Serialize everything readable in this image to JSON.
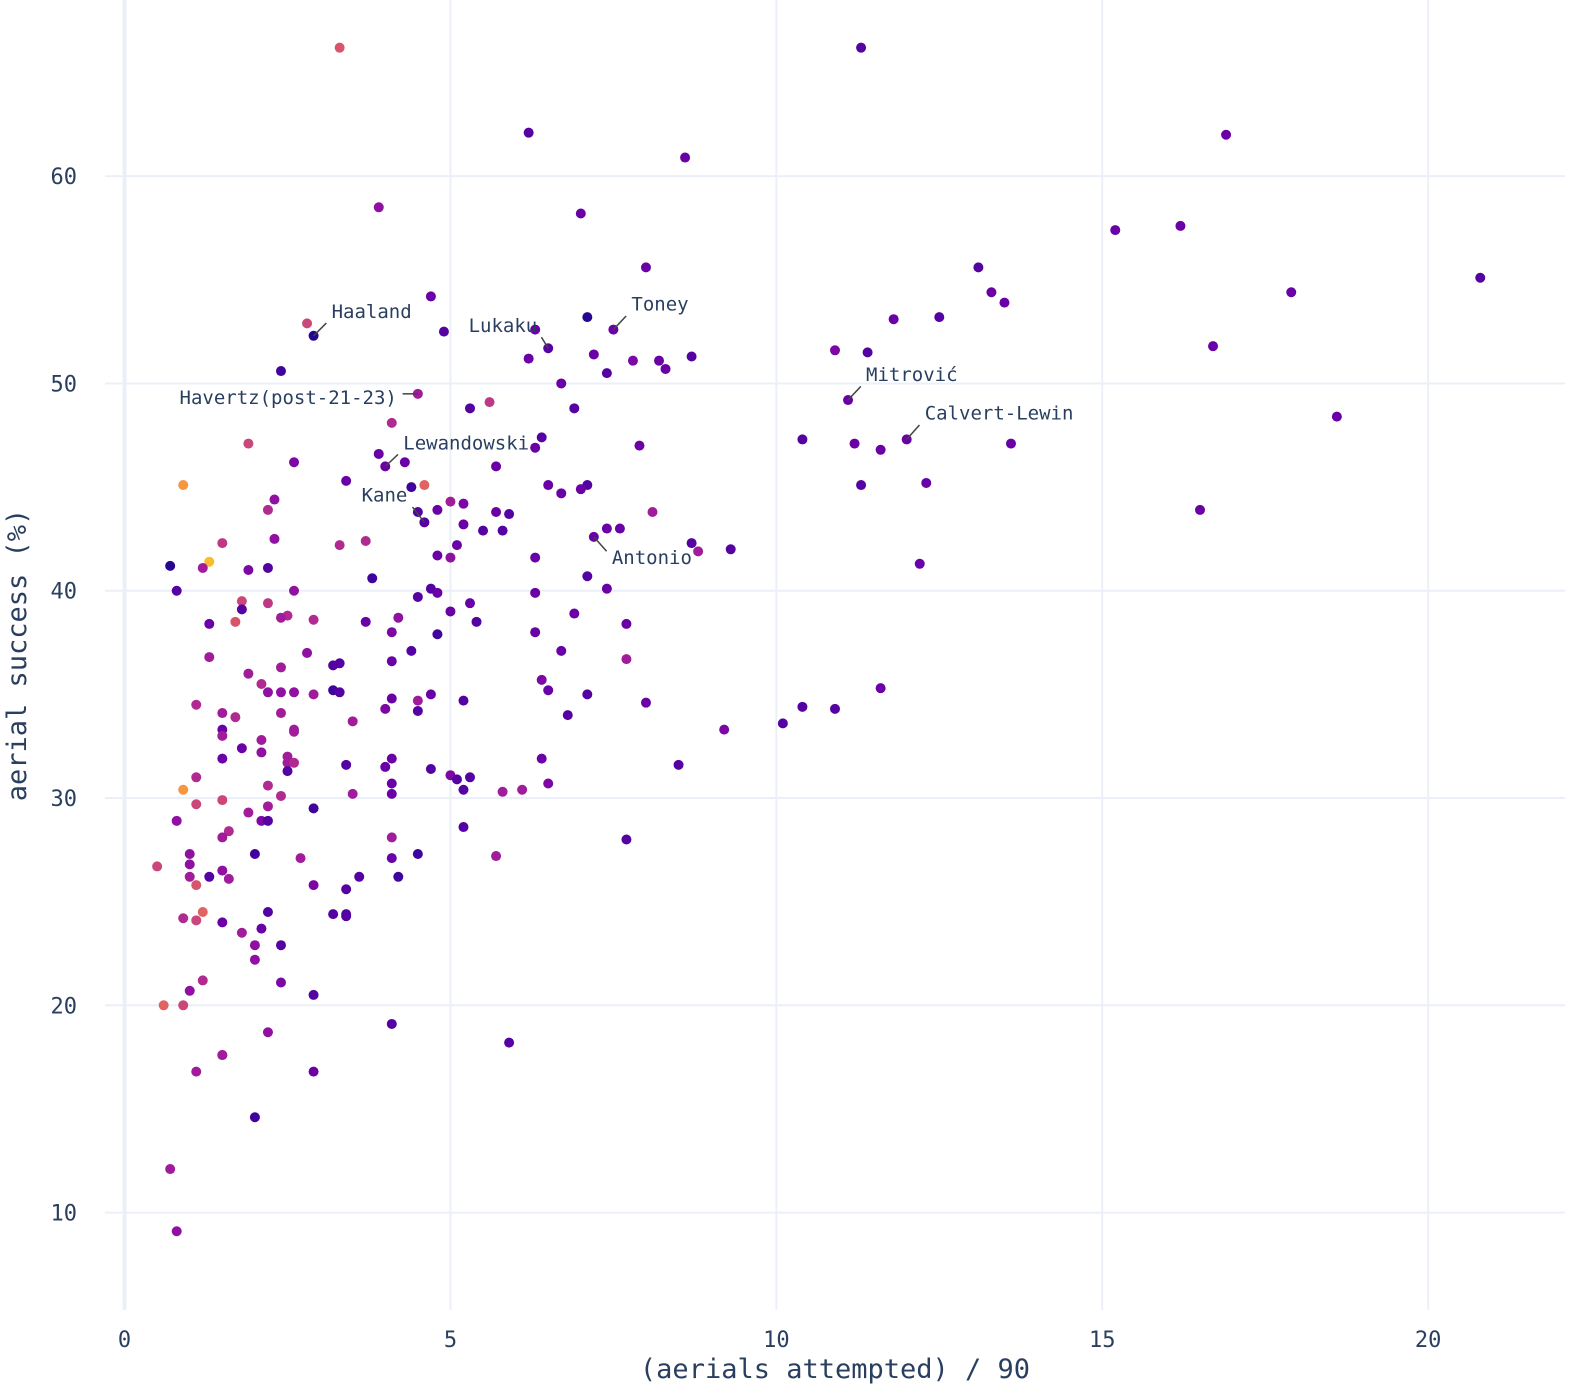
{
  "chart_data": {
    "type": "scatter",
    "xlabel": "(aerials attempted) / 90",
    "ylabel": "aerial success (%)",
    "xlim": [
      -0.3,
      22.1
    ],
    "ylim": [
      5.3,
      68.5
    ],
    "x_ticks": [
      0,
      5,
      10,
      15,
      20
    ],
    "y_ticks": [
      10,
      20,
      30,
      40,
      50,
      60
    ],
    "grid": true,
    "colorscale": "plasma",
    "points": [
      [
        3.3,
        66.2,
        0.55
      ],
      [
        11.3,
        66.2,
        0.15
      ],
      [
        6.2,
        62.1,
        0.15
      ],
      [
        16.9,
        62.0,
        0.2
      ],
      [
        8.6,
        60.9,
        0.2
      ],
      [
        3.9,
        58.5,
        0.3
      ],
      [
        7.0,
        58.2,
        0.2
      ],
      [
        15.2,
        57.4,
        0.2
      ],
      [
        16.2,
        57.6,
        0.2
      ],
      [
        8.0,
        55.6,
        0.2
      ],
      [
        13.1,
        55.6,
        0.15
      ],
      [
        20.8,
        55.1,
        0.15
      ],
      [
        13.3,
        54.4,
        0.2
      ],
      [
        17.9,
        54.4,
        0.2
      ],
      [
        4.7,
        54.2,
        0.2
      ],
      [
        13.5,
        53.9,
        0.2
      ],
      [
        7.1,
        53.2,
        0.05
      ],
      [
        11.8,
        53.1,
        0.2
      ],
      [
        12.5,
        53.2,
        0.15
      ],
      [
        2.8,
        52.9,
        0.5
      ],
      [
        2.9,
        52.3,
        0.05
      ],
      [
        4.9,
        52.5,
        0.15
      ],
      [
        6.3,
        52.6,
        0.2
      ],
      [
        7.5,
        52.6,
        0.2
      ],
      [
        6.5,
        51.7,
        0.15
      ],
      [
        10.9,
        51.6,
        0.25
      ],
      [
        11.4,
        51.5,
        0.15
      ],
      [
        16.7,
        51.8,
        0.2
      ],
      [
        6.2,
        51.2,
        0.2
      ],
      [
        7.2,
        51.4,
        0.2
      ],
      [
        7.8,
        51.1,
        0.25
      ],
      [
        8.2,
        51.1,
        0.2
      ],
      [
        8.7,
        51.3,
        0.15
      ],
      [
        8.3,
        50.7,
        0.2
      ],
      [
        2.4,
        50.6,
        0.1
      ],
      [
        7.4,
        50.5,
        0.15
      ],
      [
        6.7,
        50.0,
        0.2
      ],
      [
        4.5,
        49.5,
        0.35
      ],
      [
        5.6,
        49.1,
        0.45
      ],
      [
        11.1,
        49.2,
        0.2
      ],
      [
        5.3,
        48.8,
        0.15
      ],
      [
        6.9,
        48.8,
        0.15
      ],
      [
        18.6,
        48.4,
        0.2
      ],
      [
        4.1,
        48.1,
        0.4
      ],
      [
        6.4,
        47.4,
        0.15
      ],
      [
        10.4,
        47.3,
        0.15
      ],
      [
        12.0,
        47.3,
        0.2
      ],
      [
        1.9,
        47.1,
        0.5
      ],
      [
        7.9,
        47.0,
        0.2
      ],
      [
        11.2,
        47.1,
        0.2
      ],
      [
        13.6,
        47.1,
        0.2
      ],
      [
        6.3,
        46.9,
        0.2
      ],
      [
        11.6,
        46.8,
        0.2
      ],
      [
        3.9,
        46.6,
        0.2
      ],
      [
        4.3,
        46.2,
        0.2
      ],
      [
        2.6,
        46.2,
        0.25
      ],
      [
        4.0,
        46.0,
        0.2
      ],
      [
        5.7,
        46.0,
        0.2
      ],
      [
        0.9,
        45.1,
        0.75
      ],
      [
        3.4,
        45.3,
        0.2
      ],
      [
        4.6,
        45.1,
        0.6
      ],
      [
        4.4,
        45.0,
        0.1
      ],
      [
        6.5,
        45.1,
        0.2
      ],
      [
        7.1,
        45.1,
        0.15
      ],
      [
        11.3,
        45.1,
        0.15
      ],
      [
        12.3,
        45.2,
        0.2
      ],
      [
        7.0,
        44.9,
        0.2
      ],
      [
        6.7,
        44.7,
        0.2
      ],
      [
        2.3,
        44.4,
        0.3
      ],
      [
        5.0,
        44.3,
        0.35
      ],
      [
        5.2,
        44.2,
        0.25
      ],
      [
        2.2,
        43.9,
        0.4
      ],
      [
        4.5,
        43.8,
        0.15
      ],
      [
        4.8,
        43.9,
        0.2
      ],
      [
        5.7,
        43.8,
        0.2
      ],
      [
        5.9,
        43.7,
        0.15
      ],
      [
        8.1,
        43.8,
        0.35
      ],
      [
        16.5,
        43.9,
        0.2
      ],
      [
        4.6,
        43.3,
        0.15
      ],
      [
        5.2,
        43.2,
        0.2
      ],
      [
        7.4,
        43.0,
        0.2
      ],
      [
        7.6,
        43.0,
        0.2
      ],
      [
        5.5,
        42.9,
        0.15
      ],
      [
        5.8,
        42.9,
        0.15
      ],
      [
        7.2,
        42.6,
        0.2
      ],
      [
        2.3,
        42.5,
        0.3
      ],
      [
        1.5,
        42.3,
        0.45
      ],
      [
        3.3,
        42.2,
        0.4
      ],
      [
        3.7,
        42.4,
        0.4
      ],
      [
        5.1,
        42.2,
        0.2
      ],
      [
        8.7,
        42.3,
        0.15
      ],
      [
        8.8,
        41.9,
        0.35
      ],
      [
        9.3,
        42.0,
        0.15
      ],
      [
        4.8,
        41.7,
        0.2
      ],
      [
        5.0,
        41.6,
        0.3
      ],
      [
        6.3,
        41.6,
        0.2
      ],
      [
        12.2,
        41.3,
        0.2
      ],
      [
        1.3,
        41.4,
        0.85
      ],
      [
        0.7,
        41.2,
        0.05
      ],
      [
        1.2,
        41.1,
        0.35
      ],
      [
        2.2,
        41.1,
        0.15
      ],
      [
        1.9,
        41.0,
        0.25
      ],
      [
        7.1,
        40.7,
        0.15
      ],
      [
        3.8,
        40.6,
        0.1
      ],
      [
        0.8,
        40.0,
        0.15
      ],
      [
        2.6,
        40.0,
        0.3
      ],
      [
        4.7,
        40.1,
        0.15
      ],
      [
        4.8,
        39.9,
        0.2
      ],
      [
        6.3,
        39.9,
        0.2
      ],
      [
        7.4,
        40.1,
        0.2
      ],
      [
        4.5,
        39.7,
        0.15
      ],
      [
        2.2,
        39.4,
        0.45
      ],
      [
        1.8,
        39.5,
        0.5
      ],
      [
        5.3,
        39.4,
        0.2
      ],
      [
        1.8,
        39.1,
        0.15
      ],
      [
        5.0,
        39.0,
        0.2
      ],
      [
        6.9,
        38.9,
        0.2
      ],
      [
        2.5,
        38.8,
        0.4
      ],
      [
        2.4,
        38.7,
        0.35
      ],
      [
        4.2,
        38.7,
        0.3
      ],
      [
        2.9,
        38.6,
        0.4
      ],
      [
        1.7,
        38.5,
        0.55
      ],
      [
        3.7,
        38.5,
        0.2
      ],
      [
        5.4,
        38.5,
        0.15
      ],
      [
        1.3,
        38.4,
        0.2
      ],
      [
        7.7,
        38.4,
        0.2
      ],
      [
        4.1,
        38.0,
        0.25
      ],
      [
        4.8,
        37.9,
        0.1
      ],
      [
        6.3,
        38.0,
        0.2
      ],
      [
        6.7,
        37.1,
        0.2
      ],
      [
        2.8,
        37.0,
        0.3
      ],
      [
        4.4,
        37.1,
        0.15
      ],
      [
        1.3,
        36.8,
        0.35
      ],
      [
        7.7,
        36.7,
        0.35
      ],
      [
        3.3,
        36.5,
        0.15
      ],
      [
        4.1,
        36.6,
        0.2
      ],
      [
        2.4,
        36.3,
        0.35
      ],
      [
        3.2,
        36.4,
        0.15
      ],
      [
        1.9,
        36.0,
        0.35
      ],
      [
        6.4,
        35.7,
        0.25
      ],
      [
        2.1,
        35.5,
        0.4
      ],
      [
        2.4,
        35.1,
        0.3
      ],
      [
        2.6,
        35.1,
        0.3
      ],
      [
        3.2,
        35.2,
        0.1
      ],
      [
        3.3,
        35.1,
        0.15
      ],
      [
        2.9,
        35.0,
        0.35
      ],
      [
        4.7,
        35.0,
        0.2
      ],
      [
        7.1,
        35.0,
        0.15
      ],
      [
        6.5,
        35.2,
        0.2
      ],
      [
        2.2,
        35.1,
        0.3
      ],
      [
        11.6,
        35.3,
        0.2
      ],
      [
        4.1,
        34.8,
        0.2
      ],
      [
        4.5,
        34.7,
        0.35
      ],
      [
        5.2,
        34.7,
        0.15
      ],
      [
        8.0,
        34.6,
        0.2
      ],
      [
        1.1,
        34.5,
        0.4
      ],
      [
        10.4,
        34.4,
        0.15
      ],
      [
        10.9,
        34.3,
        0.15
      ],
      [
        4.0,
        34.3,
        0.25
      ],
      [
        4.5,
        34.2,
        0.15
      ],
      [
        1.5,
        34.1,
        0.35
      ],
      [
        2.4,
        34.1,
        0.35
      ],
      [
        1.7,
        33.9,
        0.4
      ],
      [
        6.8,
        34.0,
        0.15
      ],
      [
        3.5,
        33.7,
        0.35
      ],
      [
        10.1,
        33.6,
        0.15
      ],
      [
        1.5,
        33.3,
        0.2
      ],
      [
        2.6,
        33.3,
        0.35
      ],
      [
        9.2,
        33.3,
        0.25
      ],
      [
        2.6,
        33.2,
        0.35
      ],
      [
        1.5,
        33.0,
        0.35
      ],
      [
        2.1,
        32.8,
        0.35
      ],
      [
        1.8,
        32.4,
        0.2
      ],
      [
        2.1,
        32.2,
        0.3
      ],
      [
        2.5,
        32.0,
        0.35
      ],
      [
        1.5,
        31.9,
        0.2
      ],
      [
        4.1,
        31.9,
        0.2
      ],
      [
        6.4,
        31.9,
        0.2
      ],
      [
        2.5,
        31.7,
        0.35
      ],
      [
        2.6,
        31.7,
        0.4
      ],
      [
        3.4,
        31.6,
        0.15
      ],
      [
        8.5,
        31.6,
        0.15
      ],
      [
        2.5,
        31.3,
        0.15
      ],
      [
        4.0,
        31.5,
        0.2
      ],
      [
        4.7,
        31.4,
        0.15
      ],
      [
        5.0,
        31.1,
        0.25
      ],
      [
        5.1,
        30.9,
        0.15
      ],
      [
        5.3,
        31.0,
        0.15
      ],
      [
        1.1,
        31.0,
        0.4
      ],
      [
        4.1,
        30.7,
        0.2
      ],
      [
        6.5,
        30.7,
        0.25
      ],
      [
        0.9,
        30.4,
        0.75
      ],
      [
        2.2,
        30.6,
        0.4
      ],
      [
        5.2,
        30.4,
        0.15
      ],
      [
        5.8,
        30.3,
        0.35
      ],
      [
        6.1,
        30.4,
        0.35
      ],
      [
        3.5,
        30.2,
        0.35
      ],
      [
        4.1,
        30.2,
        0.2
      ],
      [
        2.4,
        30.1,
        0.4
      ],
      [
        1.5,
        29.9,
        0.5
      ],
      [
        1.1,
        29.7,
        0.5
      ],
      [
        2.2,
        29.6,
        0.35
      ],
      [
        2.9,
        29.5,
        0.1
      ],
      [
        1.9,
        29.3,
        0.35
      ],
      [
        2.1,
        28.9,
        0.25
      ],
      [
        2.2,
        28.9,
        0.15
      ],
      [
        0.8,
        28.9,
        0.3
      ],
      [
        1.6,
        28.4,
        0.4
      ],
      [
        5.2,
        28.6,
        0.15
      ],
      [
        1.5,
        28.1,
        0.35
      ],
      [
        4.1,
        28.1,
        0.35
      ],
      [
        7.7,
        28.0,
        0.15
      ],
      [
        2.0,
        27.3,
        0.1
      ],
      [
        4.5,
        27.3,
        0.1
      ],
      [
        1.0,
        27.3,
        0.3
      ],
      [
        2.7,
        27.1,
        0.35
      ],
      [
        4.1,
        27.1,
        0.2
      ],
      [
        5.7,
        27.2,
        0.35
      ],
      [
        0.5,
        26.7,
        0.5
      ],
      [
        1.0,
        26.8,
        0.3
      ],
      [
        1.5,
        26.5,
        0.3
      ],
      [
        1.3,
        26.2,
        0.15
      ],
      [
        1.0,
        26.2,
        0.35
      ],
      [
        1.6,
        26.1,
        0.35
      ],
      [
        3.6,
        26.2,
        0.15
      ],
      [
        4.2,
        26.2,
        0.1
      ],
      [
        1.1,
        25.8,
        0.55
      ],
      [
        2.9,
        25.8,
        0.25
      ],
      [
        3.4,
        25.6,
        0.15
      ],
      [
        1.2,
        24.5,
        0.6
      ],
      [
        2.2,
        24.5,
        0.15
      ],
      [
        3.2,
        24.4,
        0.15
      ],
      [
        3.4,
        24.4,
        0.15
      ],
      [
        3.4,
        24.3,
        0.15
      ],
      [
        0.9,
        24.2,
        0.4
      ],
      [
        1.1,
        24.1,
        0.5
      ],
      [
        1.5,
        24.0,
        0.2
      ],
      [
        2.1,
        23.7,
        0.2
      ],
      [
        1.8,
        23.5,
        0.35
      ],
      [
        2.0,
        22.9,
        0.3
      ],
      [
        2.4,
        22.9,
        0.15
      ],
      [
        2.0,
        22.2,
        0.3
      ],
      [
        1.2,
        21.2,
        0.4
      ],
      [
        2.4,
        21.1,
        0.25
      ],
      [
        1.0,
        20.7,
        0.3
      ],
      [
        2.9,
        20.5,
        0.15
      ],
      [
        0.6,
        20.0,
        0.6
      ],
      [
        0.9,
        20.0,
        0.5
      ],
      [
        4.1,
        19.1,
        0.15
      ],
      [
        2.2,
        18.7,
        0.3
      ],
      [
        5.9,
        18.2,
        0.15
      ],
      [
        1.5,
        17.6,
        0.4
      ],
      [
        1.5,
        17.6,
        0.35
      ],
      [
        1.1,
        16.8,
        0.35
      ],
      [
        2.9,
        16.8,
        0.2
      ],
      [
        2.0,
        14.6,
        0.1
      ],
      [
        0.7,
        12.1,
        0.35
      ],
      [
        0.8,
        9.1,
        0.3
      ]
    ],
    "annotations": [
      {
        "text": "Haaland",
        "x": 2.9,
        "y": 52.3
      },
      {
        "text": "Lukaku",
        "x": 6.5,
        "y": 51.7
      },
      {
        "text": "Toney",
        "x": 7.5,
        "y": 52.6
      },
      {
        "text": "Mitrović",
        "x": 11.1,
        "y": 49.2
      },
      {
        "text": "Havertz(post-21-23)",
        "x": 4.5,
        "y": 49.5
      },
      {
        "text": "Calvert-Lewin",
        "x": 12.0,
        "y": 47.3
      },
      {
        "text": "Lewandowski",
        "x": 4.0,
        "y": 46.0
      },
      {
        "text": "Kane",
        "x": 4.6,
        "y": 43.3
      },
      {
        "text": "Antonio",
        "x": 7.2,
        "y": 42.6
      }
    ]
  }
}
